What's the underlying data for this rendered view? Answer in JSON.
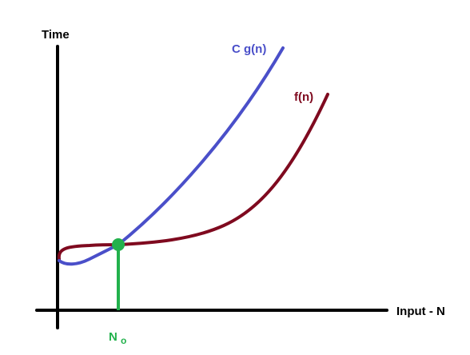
{
  "diagram": {
    "y_axis_label": "Time",
    "x_axis_label": "Input - N",
    "curves": [
      {
        "label": "C g(n)",
        "color": "#4a4fc9"
      },
      {
        "label": "f(n)",
        "color": "#7f0a1f"
      }
    ],
    "intersection": {
      "label_main": "N",
      "label_sub": "o",
      "color": "#22b14c"
    },
    "axis_color": "#000000"
  }
}
